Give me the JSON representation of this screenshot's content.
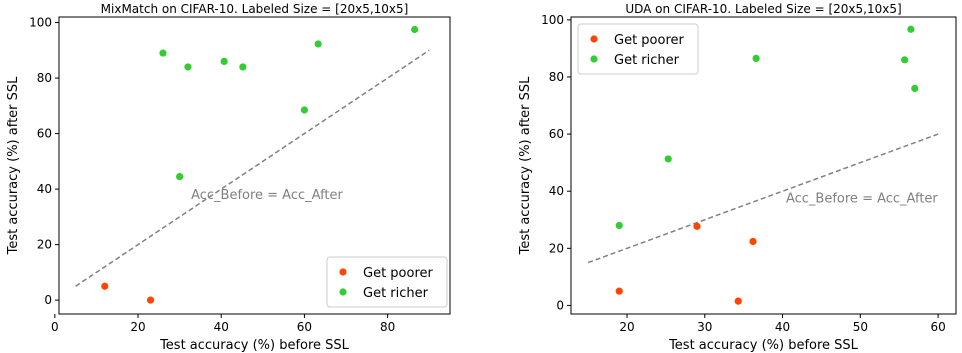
{
  "chart_data": [
    {
      "type": "scatter",
      "title": "MixMatch on CIFAR-10. Labeled Size = [20x5,10x5]",
      "xlabel": "Test accuracy (%) before SSL",
      "ylabel": "Test accuracy (%) after SSL",
      "xlim": [
        1,
        95
      ],
      "ylim": [
        -5,
        102
      ],
      "xticks": [
        0,
        20,
        40,
        60,
        80
      ],
      "yticks": [
        0,
        20,
        40,
        60,
        80,
        100
      ],
      "legend_position": "lower-right",
      "series": [
        {
          "name": "Get poorer",
          "color": "#ff4500",
          "points": [
            [
              12,
              5
            ],
            [
              23,
              0
            ]
          ]
        },
        {
          "name": "Get richer",
          "color": "#32cd32",
          "points": [
            [
              26,
              89
            ],
            [
              32,
              84
            ],
            [
              30,
              44.5
            ],
            [
              40.7,
              86
            ],
            [
              45.2,
              84
            ],
            [
              60,
              68.5
            ],
            [
              63.3,
              92.3
            ],
            [
              86.5,
              97.5
            ]
          ]
        }
      ],
      "reference_line": {
        "x": [
          5,
          90
        ],
        "y": [
          5,
          90
        ],
        "label": "Acc_Before = Acc_After",
        "label_at": [
          51,
          36.5
        ],
        "color": "#808080"
      }
    },
    {
      "type": "scatter",
      "title": "UDA on CIFAR-10. Labeled Size = [20x5,10x5]",
      "xlabel": "Test accuracy (%) before SSL",
      "ylabel": "Test accuracy (%) after SSL",
      "xlim": [
        12.8,
        62.3
      ],
      "ylim": [
        -3,
        101
      ],
      "xticks": [
        20,
        30,
        40,
        50,
        60
      ],
      "yticks": [
        0,
        20,
        40,
        60,
        80,
        100
      ],
      "legend_position": "upper-left",
      "series": [
        {
          "name": "Get poorer",
          "color": "#ff4500",
          "points": [
            [
              19,
              5
            ],
            [
              29,
              27.7
            ],
            [
              36.2,
              22.4
            ],
            [
              34.3,
              1.5
            ]
          ]
        },
        {
          "name": "Get richer",
          "color": "#32cd32",
          "points": [
            [
              19,
              28
            ],
            [
              25.3,
              51.3
            ],
            [
              36.6,
              86.5
            ],
            [
              55.7,
              86
            ],
            [
              56.5,
              96.7
            ],
            [
              57,
              76
            ]
          ]
        }
      ],
      "reference_line": {
        "x": [
          15,
          60
        ],
        "y": [
          15,
          60
        ],
        "label": "Acc_Before = Acc_After",
        "label_at": [
          50.2,
          36
        ],
        "color": "#808080"
      }
    }
  ]
}
